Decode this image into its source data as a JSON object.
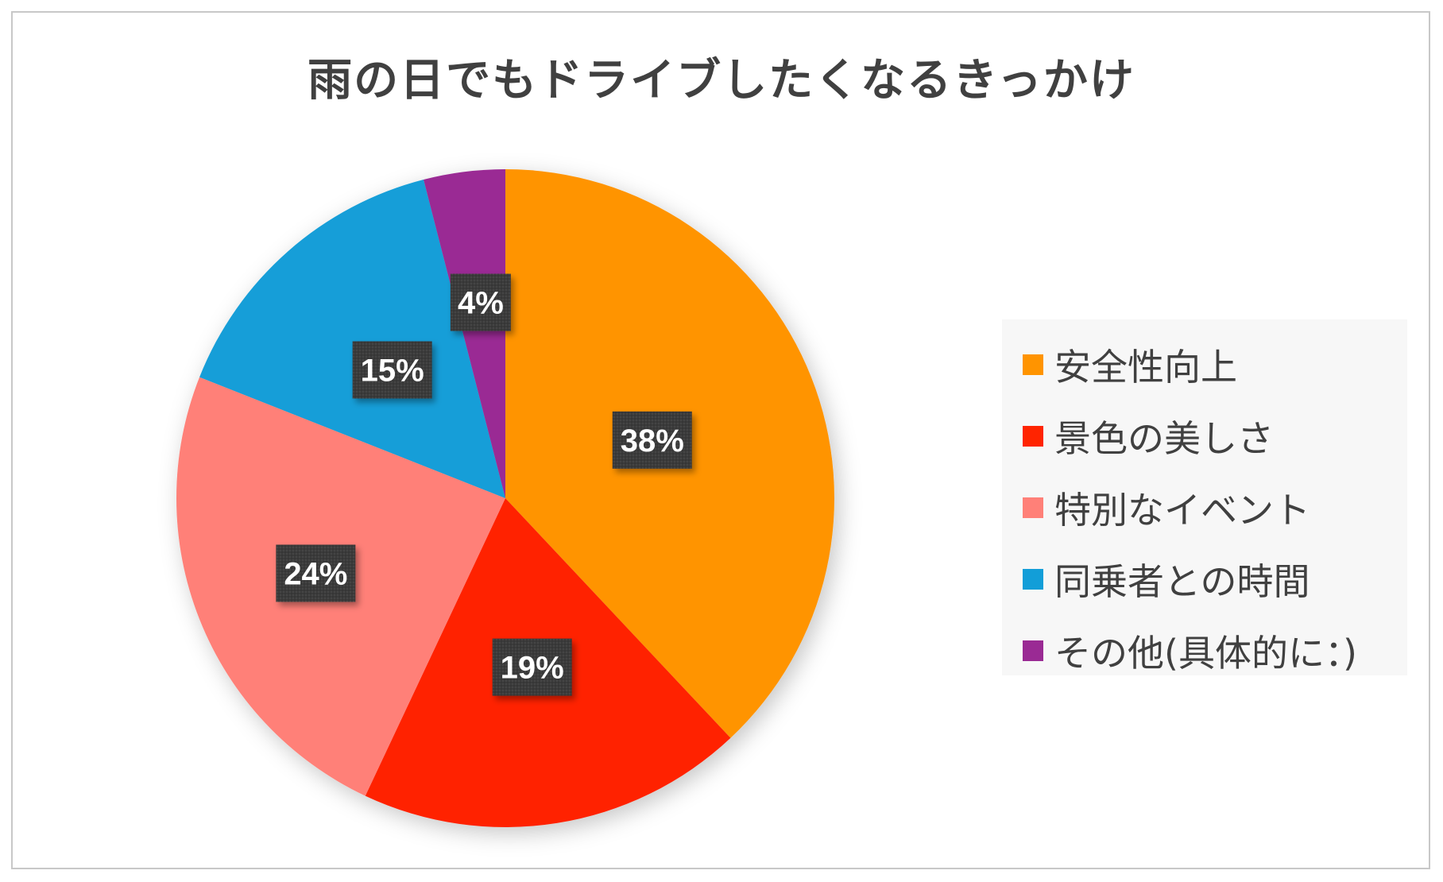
{
  "chart_data": {
    "type": "pie",
    "title": "雨の日でもドライブしたくなるきっかけ",
    "categories": [
      "安全性向上",
      "景色の美しさ",
      "特別なイベント",
      "同乗者との時間",
      "その他(具体的に：)"
    ],
    "values": [
      38,
      19,
      24,
      15,
      4
    ],
    "labels": [
      "38%",
      "19%",
      "24%",
      "15%",
      "4%"
    ],
    "colors": [
      "#FF9400",
      "#FF2400",
      "#FF8078",
      "#129ED8",
      "#9A2A94"
    ],
    "label_box_color": "#3a3a3a",
    "legend_position": "right",
    "start_angle": "12 o'clock",
    "direction": "clockwise"
  }
}
